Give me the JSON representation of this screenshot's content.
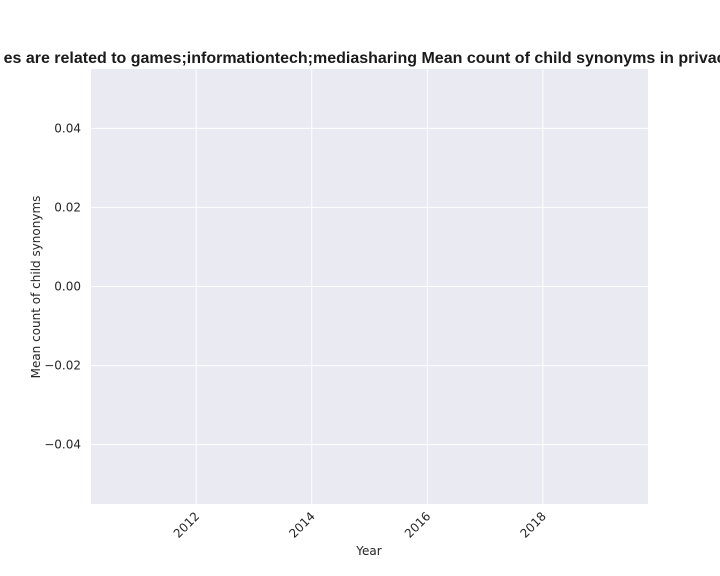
{
  "chart_data": {
    "type": "line",
    "title": "es are related to games;informationtech;mediasharing Mean count of child synonyms in privacy",
    "xlabel": "Year",
    "ylabel": "Mean count of child synonyms",
    "x_ticks": [
      "2012",
      "2014",
      "2016",
      "2018"
    ],
    "x_tick_values": [
      2012,
      2014,
      2016,
      2018
    ],
    "y_ticks": [
      "0.04",
      "0.02",
      "0.00",
      "−0.02",
      "−0.04"
    ],
    "y_tick_values": [
      0.04,
      0.02,
      0.0,
      -0.02,
      -0.04
    ],
    "xlim": [
      2010.18,
      2019.82
    ],
    "ylim": [
      -0.055,
      0.055
    ],
    "grid": true,
    "series": [],
    "colors": {
      "plot_background": "#eaeaf2",
      "grid": "#ffffff",
      "text": "#262626"
    }
  }
}
